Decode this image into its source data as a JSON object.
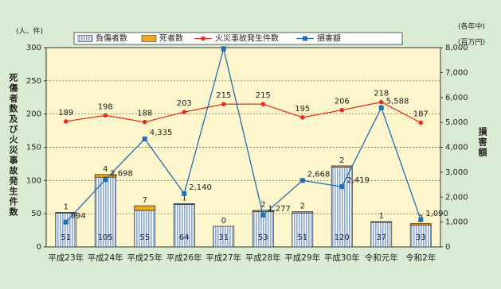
{
  "chart_data": {
    "type": "bar",
    "y_label": "死傷者数及び火災事故発生件数",
    "y_unit": "(人、件)",
    "y2_label": "損害額",
    "y2_unit": "(百万円)",
    "note": "(各年中)",
    "categories": [
      "平成23年",
      "平成24年",
      "平成25年",
      "平成26年",
      "平成27年",
      "平成28年",
      "平成29年",
      "平成30年",
      "令和元年",
      "令和2年"
    ],
    "series": [
      {
        "name": "負傷者数",
        "type": "bar",
        "color": "#9db8de",
        "values": [
          51,
          105,
          55,
          64,
          31,
          53,
          51,
          120,
          37,
          33
        ]
      },
      {
        "name": "死者数",
        "type": "bar",
        "color": "#f2a81d",
        "values": [
          1,
          4,
          7,
          1,
          0,
          2,
          2,
          2,
          1,
          2
        ]
      },
      {
        "name": "火災事故発生件数",
        "type": "line",
        "color": "#e2321f",
        "values": [
          189,
          198,
          188,
          203,
          215,
          215,
          195,
          206,
          218,
          187
        ]
      },
      {
        "name": "損害額",
        "type": "line",
        "axis": "y2",
        "color": "#1f6fb2",
        "values": [
          994,
          2698,
          4335,
          2140,
          7956,
          1277,
          2668,
          2419,
          5588,
          1090
        ],
        "value_labels": [
          "994",
          "2,698",
          "4,335",
          "2,140",
          "7,956",
          "1,277",
          "2,668",
          "2,419",
          "5,588",
          "1,090"
        ]
      }
    ],
    "ylim": [
      0,
      300
    ],
    "yticks": [
      0,
      50,
      100,
      150,
      200,
      250,
      300
    ],
    "y2lim": [
      0,
      8000
    ],
    "y2ticks": [
      0,
      {
        "value": 1000,
        "label": "1,000"
      },
      {
        "value": 2000,
        "label": "2,000"
      },
      {
        "value": 3000,
        "label": "3,000"
      },
      {
        "value": 4000,
        "label": "4,000"
      },
      {
        "value": 5000,
        "label": "5,000"
      },
      {
        "value": 6000,
        "label": "6,000"
      },
      {
        "value": 7000,
        "label": "7,000"
      },
      {
        "value": 8000,
        "label": "8,000"
      }
    ],
    "grid": true
  }
}
